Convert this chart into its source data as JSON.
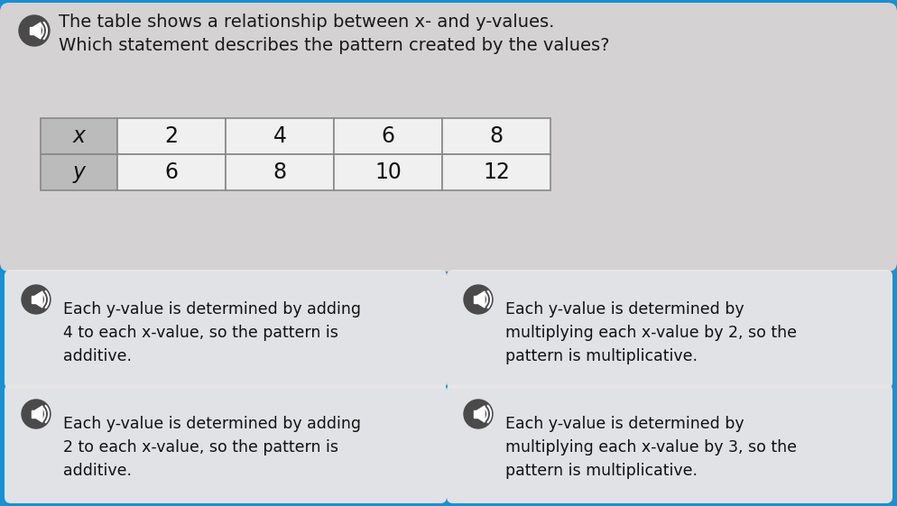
{
  "bg_color": "#1b8fd0",
  "top_panel_color": "#d8d6d6",
  "title_line1": "The table shows a relationship between x- and y-values.",
  "title_line2": "Which statement describes the pattern created by the values?",
  "table_headers": [
    "x",
    "2",
    "4",
    "6",
    "8"
  ],
  "table_row2": [
    "y",
    "6",
    "8",
    "10",
    "12"
  ],
  "answer_texts": [
    "Each y-value is determined by adding\n4 to each x-value, so the pattern is\nadditive.",
    "Each y-value is determined by\nmultiplying each x-value by 2, so the\npattern is multiplicative.",
    "Each y-value is determined by adding\n2 to each x-value, so the pattern is\nadditive.",
    "Each y-value is determined by\nmultiplying each x-value by 3, so the\npattern is multiplicative."
  ],
  "font_size_title": 14,
  "font_size_table": 17,
  "font_size_answer": 12.5,
  "fig_width": 9.94,
  "fig_height": 5.61,
  "dpi": 100
}
